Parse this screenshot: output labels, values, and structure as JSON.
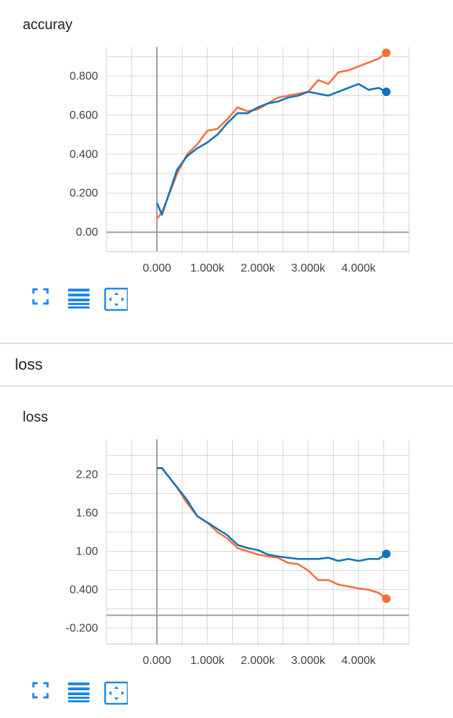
{
  "charts": [
    {
      "title": "accuray",
      "chart_data": {
        "type": "line",
        "title": "accuray",
        "xlabel": "",
        "ylabel": "",
        "xlim": [
          -1000,
          5000
        ],
        "ylim": [
          -0.1,
          0.95
        ],
        "x_ticks": [
          0,
          1000,
          2000,
          3000,
          4000
        ],
        "x_tick_labels": [
          "0.000",
          "1.000k",
          "2.000k",
          "3.000k",
          "4.000k"
        ],
        "y_ticks": [
          0,
          0.2,
          0.4,
          0.6,
          0.8
        ],
        "y_tick_labels": [
          "0.00",
          "0.200",
          "0.400",
          "0.600",
          "0.800"
        ],
        "grid": true,
        "series": [
          {
            "color": "#f4703c",
            "x": [
              0,
              100,
              400,
              600,
              800,
              1000,
              1200,
              1400,
              1600,
              1800,
              2000,
              2200,
              2400,
              2600,
              2800,
              3000,
              3200,
              3400,
              3600,
              3800,
              4000,
              4200,
              4400,
              4550
            ],
            "y": [
              0.07,
              0.1,
              0.3,
              0.4,
              0.45,
              0.52,
              0.53,
              0.58,
              0.64,
              0.62,
              0.63,
              0.66,
              0.69,
              0.7,
              0.71,
              0.72,
              0.78,
              0.76,
              0.82,
              0.83,
              0.85,
              0.87,
              0.89,
              0.92
            ]
          },
          {
            "color": "#0f75b5",
            "x": [
              0,
              100,
              400,
              600,
              800,
              1000,
              1200,
              1400,
              1600,
              1800,
              2000,
              2200,
              2400,
              2600,
              2800,
              3000,
              3200,
              3400,
              3600,
              3800,
              4000,
              4200,
              4400,
              4550
            ],
            "y": [
              0.15,
              0.09,
              0.32,
              0.39,
              0.43,
              0.46,
              0.5,
              0.56,
              0.61,
              0.61,
              0.64,
              0.66,
              0.67,
              0.69,
              0.7,
              0.72,
              0.71,
              0.7,
              0.72,
              0.74,
              0.76,
              0.73,
              0.74,
              0.72
            ]
          }
        ]
      }
    },
    {
      "title": "loss",
      "chart_data": {
        "type": "line",
        "title": "loss",
        "xlabel": "",
        "ylabel": "",
        "xlim": [
          -1000,
          5000
        ],
        "ylim": [
          -0.45,
          2.75
        ],
        "x_ticks": [
          0,
          1000,
          2000,
          3000,
          4000
        ],
        "x_tick_labels": [
          "0.000",
          "1.000k",
          "2.000k",
          "3.000k",
          "4.000k"
        ],
        "y_ticks": [
          -0.2,
          0.4,
          1.0,
          1.6,
          2.2
        ],
        "y_tick_labels": [
          "-0.200",
          "0.400",
          "1.00",
          "1.60",
          "2.20"
        ],
        "grid": true,
        "series": [
          {
            "color": "#f4703c",
            "x": [
              0,
              100,
              200,
              400,
              600,
              800,
              1000,
              1200,
              1400,
              1600,
              1800,
              2000,
              2200,
              2400,
              2600,
              2800,
              3000,
              3200,
              3400,
              3600,
              3800,
              4000,
              4200,
              4400,
              4550
            ],
            "y": [
              2.3,
              2.3,
              2.2,
              2.0,
              1.75,
              1.55,
              1.45,
              1.3,
              1.2,
              1.05,
              1.0,
              0.95,
              0.92,
              0.9,
              0.82,
              0.8,
              0.7,
              0.55,
              0.55,
              0.48,
              0.45,
              0.42,
              0.4,
              0.35,
              0.26
            ]
          },
          {
            "color": "#0f75b5",
            "x": [
              0,
              100,
              200,
              400,
              600,
              800,
              1000,
              1200,
              1400,
              1600,
              1800,
              2000,
              2200,
              2400,
              2600,
              2800,
              3000,
              3200,
              3400,
              3600,
              3800,
              4000,
              4200,
              4400,
              4550
            ],
            "y": [
              2.3,
              2.3,
              2.2,
              2.0,
              1.8,
              1.55,
              1.45,
              1.35,
              1.25,
              1.1,
              1.05,
              1.02,
              0.95,
              0.92,
              0.9,
              0.88,
              0.88,
              0.88,
              0.9,
              0.85,
              0.88,
              0.85,
              0.88,
              0.88,
              0.96
            ]
          }
        ]
      }
    }
  ],
  "group": {
    "title": "loss"
  },
  "toolbar": {
    "icons": [
      "fullscreen-icon",
      "data-table-icon",
      "fit-domain-icon"
    ],
    "accent": "#1e88e5"
  }
}
